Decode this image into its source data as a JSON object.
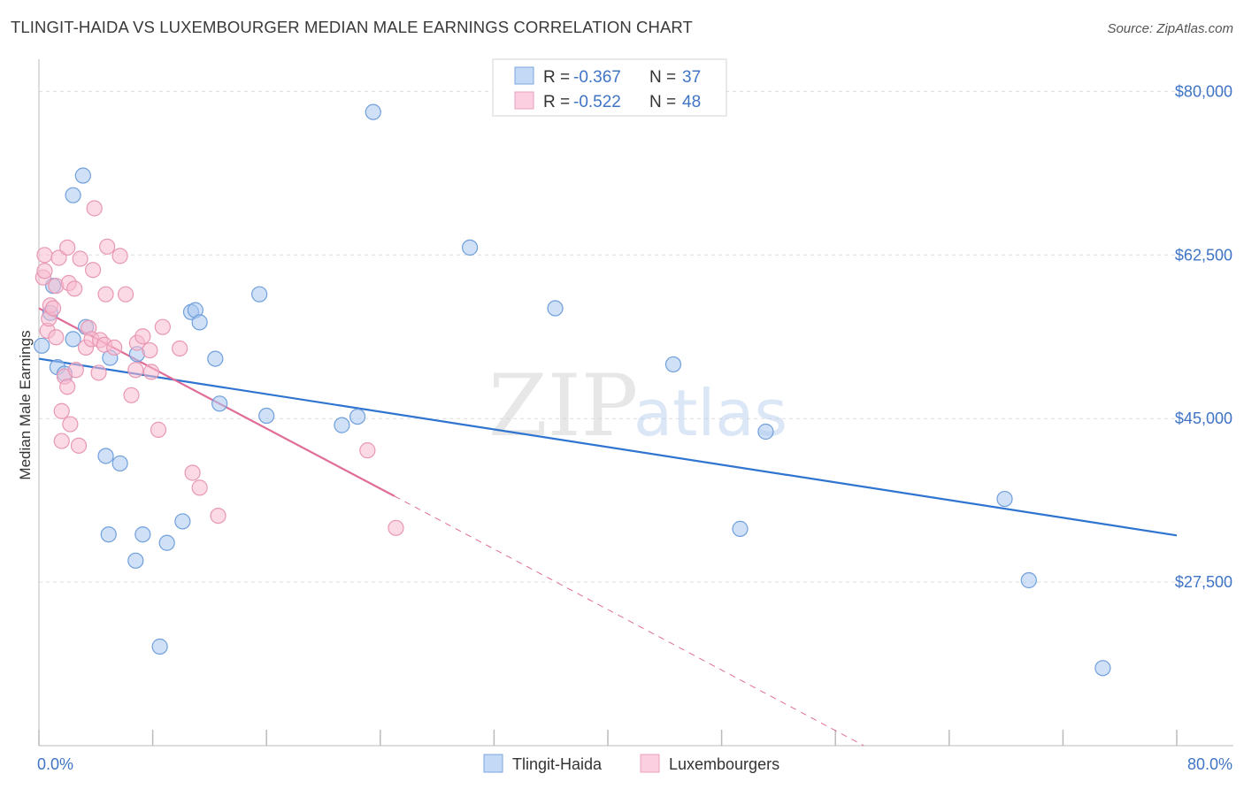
{
  "title": "TLINGIT-HAIDA VS LUXEMBOURGER MEDIAN MALE EARNINGS CORRELATION CHART",
  "source": "Source: ZipAtlas.com",
  "watermark": {
    "zip": "ZIP",
    "atlas": "atlas"
  },
  "colors": {
    "blue_fill": "#a9c8f0",
    "blue_stroke": "#6f9fdc",
    "blue_line": "#2f74d0",
    "pink_fill": "#f7bcd0",
    "pink_stroke": "#e898b4",
    "pink_line": "#e06d98",
    "tick_text": "#3f74c6",
    "grid": "#dddddd"
  },
  "legend": {
    "rows": [
      {
        "r_label": "R = ",
        "r_value": "-0.367",
        "n_label": "N = ",
        "n_value": "37"
      },
      {
        "r_label": "R = ",
        "r_value": "-0.522",
        "n_label": "N = ",
        "n_value": "48"
      }
    ]
  },
  "bottom_legend": [
    "Tlingit-Haida",
    "Luxembourgers"
  ],
  "chart_data": {
    "type": "scatter",
    "title": "TLINGIT-HAIDA VS LUXEMBOURGER MEDIAN MALE EARNINGS CORRELATION CHART",
    "xlabel": "",
    "ylabel": "Median Male Earnings",
    "xlim": [
      0,
      80
    ],
    "ylim": [
      10000,
      82500
    ],
    "x_tick_labels": [
      "0.0%",
      "80.0%"
    ],
    "y_ticks": [
      27500,
      45000,
      62500,
      80000
    ],
    "y_tick_labels": [
      "$27,500",
      "$45,000",
      "$62,500",
      "$80,000"
    ],
    "grid": true,
    "series": [
      {
        "name": "Tlingit-Haida",
        "points": [
          [
            0.2,
            52800
          ],
          [
            0.8,
            56300
          ],
          [
            1.0,
            59200
          ],
          [
            1.3,
            50500
          ],
          [
            1.8,
            49800
          ],
          [
            2.4,
            53500
          ],
          [
            2.4,
            68900
          ],
          [
            3.1,
            71000
          ],
          [
            3.3,
            54800
          ],
          [
            4.7,
            41000
          ],
          [
            4.9,
            32600
          ],
          [
            5.0,
            51500
          ],
          [
            5.7,
            40200
          ],
          [
            6.8,
            29800
          ],
          [
            6.9,
            51900
          ],
          [
            7.3,
            32600
          ],
          [
            8.5,
            20600
          ],
          [
            9.0,
            31700
          ],
          [
            10.1,
            34000
          ],
          [
            10.7,
            56400
          ],
          [
            11.0,
            56600
          ],
          [
            11.3,
            55300
          ],
          [
            12.4,
            51400
          ],
          [
            12.7,
            46600
          ],
          [
            15.5,
            58300
          ],
          [
            16.0,
            45300
          ],
          [
            21.3,
            44300
          ],
          [
            22.4,
            45200
          ],
          [
            23.5,
            77800
          ],
          [
            30.3,
            63300
          ],
          [
            36.3,
            56800
          ],
          [
            44.6,
            50800
          ],
          [
            51.1,
            43600
          ],
          [
            49.3,
            33200
          ],
          [
            67.9,
            36400
          ],
          [
            69.6,
            27700
          ],
          [
            74.8,
            18300
          ]
        ]
      },
      {
        "name": "Luxembourgers",
        "points": [
          [
            0.3,
            60100
          ],
          [
            0.4,
            62500
          ],
          [
            0.4,
            60800
          ],
          [
            0.6,
            54400
          ],
          [
            0.7,
            55700
          ],
          [
            0.8,
            57100
          ],
          [
            1.0,
            56800
          ],
          [
            1.2,
            53700
          ],
          [
            1.2,
            59200
          ],
          [
            1.4,
            62200
          ],
          [
            1.6,
            45800
          ],
          [
            1.6,
            42600
          ],
          [
            1.8,
            49500
          ],
          [
            2.0,
            63300
          ],
          [
            2.0,
            48400
          ],
          [
            2.1,
            59500
          ],
          [
            2.2,
            44400
          ],
          [
            2.5,
            58900
          ],
          [
            2.6,
            50200
          ],
          [
            2.8,
            42100
          ],
          [
            2.9,
            62100
          ],
          [
            3.3,
            52600
          ],
          [
            3.5,
            54700
          ],
          [
            3.7,
            53500
          ],
          [
            3.8,
            60900
          ],
          [
            3.9,
            67500
          ],
          [
            4.2,
            49900
          ],
          [
            4.3,
            53400
          ],
          [
            4.6,
            52900
          ],
          [
            4.7,
            58300
          ],
          [
            4.8,
            63400
          ],
          [
            5.3,
            52600
          ],
          [
            5.7,
            62400
          ],
          [
            6.1,
            58300
          ],
          [
            6.5,
            47500
          ],
          [
            6.8,
            50200
          ],
          [
            6.9,
            53100
          ],
          [
            7.3,
            53800
          ],
          [
            7.8,
            52300
          ],
          [
            7.9,
            50000
          ],
          [
            8.4,
            43800
          ],
          [
            8.7,
            54800
          ],
          [
            9.9,
            52500
          ],
          [
            10.8,
            39200
          ],
          [
            11.3,
            37600
          ],
          [
            12.6,
            34600
          ],
          [
            23.1,
            41600
          ],
          [
            25.1,
            33300
          ]
        ]
      }
    ],
    "trend_lines": [
      {
        "series": "Tlingit-Haida",
        "x": [
          0,
          80
        ],
        "y": [
          51400,
          32500
        ],
        "style": "solid"
      },
      {
        "series": "Luxembourgers",
        "x": [
          0,
          25
        ],
        "y": [
          56800,
          36700
        ],
        "style": "solid"
      },
      {
        "series": "Luxembourgers",
        "x": [
          25,
          58
        ],
        "y": [
          36700,
          10000
        ],
        "style": "dashed"
      }
    ]
  }
}
